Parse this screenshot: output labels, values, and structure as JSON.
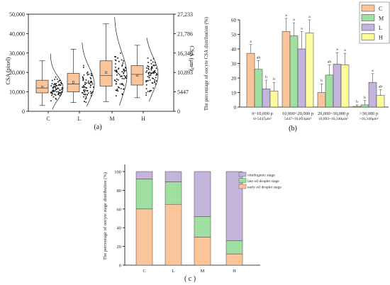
{
  "panels": {
    "a": "(a)",
    "b": "(b)",
    "c": "( c )"
  },
  "colors": {
    "C": "#fbc59b",
    "M": "#9fe0a0",
    "L": "#c3b4dc",
    "H": "#fdfb9b",
    "stroke": "#333333"
  },
  "chart_data": [
    {
      "type": "box",
      "panel": "a",
      "ylabel": "CSA (pixel)",
      "ylabel_right": "CSA (μm²)",
      "ylim": [
        0,
        50000
      ],
      "yticks": [
        "0",
        "10,000",
        "20,000",
        "30,000",
        "40,000",
        "50,000"
      ],
      "yticks_right": [
        "0",
        "5447",
        "10,893",
        "16,340",
        "21,786",
        "27,233"
      ],
      "categories": [
        "C",
        "L",
        "M",
        "H"
      ],
      "boxes": [
        {
          "name": "C",
          "whisker_low": 3000,
          "q1": 9500,
          "median": 12000,
          "q3": 16000,
          "whisker_high": 26000,
          "mean": 12500
        },
        {
          "name": "L",
          "whisker_low": 4500,
          "q1": 10000,
          "median": 14000,
          "q3": 19500,
          "whisker_high": 32000,
          "mean": 15000
        },
        {
          "name": "M",
          "whisker_low": 5000,
          "q1": 13000,
          "median": 18500,
          "q3": 26000,
          "whisker_high": 45000,
          "mean": 20000
        },
        {
          "name": "H",
          "whisker_low": 7000,
          "q1": 13500,
          "median": 19000,
          "q3": 23500,
          "whisker_high": 34000,
          "mean": 18500
        }
      ]
    },
    {
      "type": "bar",
      "panel": "b",
      "ylabel": "The percentage of oocyte CSA distribution (%)",
      "ylim": [
        0,
        60
      ],
      "yticks": [
        "0",
        "10",
        "20",
        "30",
        "40",
        "50",
        "60"
      ],
      "categories": [
        "0~10,000 p",
        "10,000~20,000 p",
        "20,000~30,000 p",
        ">30,000 p"
      ],
      "sublabels": [
        "0~5447μm²",
        "5447~10,893μm²",
        "10,893~16,340μm²",
        ">16,340μm²"
      ],
      "legend_position": "top-right",
      "series": [
        {
          "name": "C",
          "values": [
            37,
            52,
            10,
            0.5
          ],
          "errors": [
            6,
            9,
            6,
            1
          ],
          "letters": [
            "a",
            "a",
            "b",
            "b"
          ]
        },
        {
          "name": "M",
          "values": [
            26,
            49,
            22,
            1.5
          ],
          "errors": [
            6,
            9,
            7,
            3
          ],
          "letters": [
            "ab",
            "a",
            "ab",
            "b"
          ]
        },
        {
          "name": "L",
          "values": [
            12.5,
            40,
            29.5,
            17
          ],
          "errors": [
            6,
            12,
            8,
            6
          ],
          "letters": [
            "b",
            "a",
            "a",
            "a"
          ]
        },
        {
          "name": "H",
          "values": [
            11,
            51,
            29,
            8
          ],
          "errors": [
            6,
            9,
            8,
            4
          ],
          "letters": [
            "b",
            "a",
            "a",
            "ab"
          ]
        }
      ]
    },
    {
      "type": "stacked-bar",
      "panel": "c",
      "ylabel": "The percentage of oocyte stage distribution (%)",
      "ylim": [
        0,
        100
      ],
      "yticks": [
        "0",
        "20",
        "40",
        "60",
        "80",
        "100"
      ],
      "categories": [
        "C",
        "L",
        "M",
        "H"
      ],
      "legend_position": "top-left",
      "series": [
        {
          "name": "early oil droplet stage",
          "values": [
            60,
            65,
            30,
            12
          ]
        },
        {
          "name": "late oil droplet stage",
          "values": [
            32,
            24,
            22,
            14
          ]
        },
        {
          "name": "vitellogenic stage",
          "values": [
            8,
            11,
            48,
            74
          ]
        }
      ]
    }
  ]
}
